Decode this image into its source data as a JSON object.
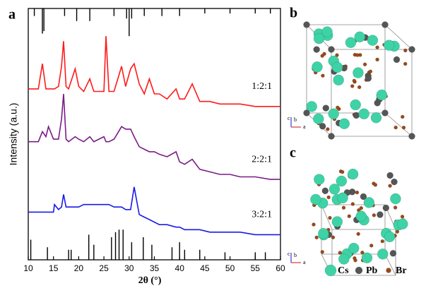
{
  "chart_data": {
    "type": "line",
    "panel_label": "a",
    "x_label": "2θ (°)",
    "y_label": "Intensity (a.u.)",
    "xlim": [
      10,
      60
    ],
    "ylim": [
      0,
      100
    ],
    "xticks": [
      10,
      15,
      20,
      25,
      30,
      35,
      40,
      45,
      50,
      55,
      60
    ],
    "x": [
      10,
      11,
      12,
      12.8,
      13.5,
      14,
      15,
      15.2,
      16,
      16.6,
      17,
      17.5,
      18,
      19.3,
      20,
      21,
      22.2,
      23,
      24,
      25,
      25.4,
      26,
      27,
      28.5,
      29.3,
      30.3,
      31,
      32,
      33,
      34,
      35,
      36,
      37.5,
      39.3,
      40,
      41,
      42.5,
      44,
      46,
      48,
      50,
      52,
      55,
      58,
      60
    ],
    "series": [
      {
        "name": "1:2:1",
        "color": "#ff1a1a",
        "values": [
          68,
          68,
          68,
          78,
          68,
          68,
          68,
          68,
          69,
          77,
          87,
          69,
          68,
          76,
          69,
          67,
          72,
          67,
          67,
          67,
          89,
          67,
          67,
          77,
          69,
          76,
          78,
          70,
          66,
          72,
          66,
          66,
          64,
          68,
          64,
          64,
          70,
          63,
          63,
          62,
          62,
          62,
          61,
          61,
          61
        ]
      },
      {
        "name": "2:2:1",
        "color": "#7a1c86",
        "values": [
          47,
          47,
          47,
          51,
          49,
          53,
          48,
          48,
          48,
          56,
          66,
          48,
          47,
          49,
          48,
          47,
          49,
          47,
          48,
          49,
          47,
          47,
          48,
          53,
          52,
          52,
          49,
          45,
          44,
          43,
          43,
          42,
          41,
          43,
          39,
          38,
          40,
          36,
          35,
          34,
          34,
          33,
          33,
          32,
          32
        ]
      },
      {
        "name": "3:2:1",
        "color": "#1a1ae6",
        "values": [
          19,
          19,
          19,
          19,
          19,
          19,
          19,
          22,
          20,
          21,
          26,
          21,
          21,
          21,
          21,
          22,
          22,
          22,
          22,
          22,
          22,
          22,
          21,
          21,
          20,
          20,
          29,
          18,
          17,
          16,
          15,
          14,
          14,
          13,
          13,
          12,
          12,
          12,
          11,
          11,
          11,
          11,
          10,
          10,
          10
        ]
      }
    ],
    "references": [
      {
        "position": "top",
        "x": [
          11.2,
          12.8,
          13.1,
          17.2,
          19.6,
          22.2,
          27,
          29.5,
          30,
          30.5,
          33,
          36.5,
          40,
          45,
          50,
          55,
          58
        ],
        "values": [
          3,
          10,
          9,
          3,
          5,
          5,
          3,
          4,
          11,
          4,
          3,
          3,
          3,
          2,
          2,
          2,
          2
        ]
      },
      {
        "position": "bottom",
        "x": [
          10.5,
          13.8,
          18,
          18.5,
          22,
          23,
          26.5,
          27.3,
          28,
          28.8,
          30.5,
          32.8,
          34.5,
          38.5,
          40,
          41,
          44,
          49,
          55,
          57
        ],
        "values": [
          8,
          5,
          4,
          4,
          10,
          6,
          9,
          11,
          12,
          12,
          7,
          9,
          6,
          5,
          7,
          4,
          4,
          3,
          3,
          3
        ]
      }
    ]
  },
  "structures": {
    "b": {
      "label": "b",
      "axes": [
        "c",
        "b",
        "a"
      ]
    },
    "c": {
      "label": "c",
      "axes": [
        "c",
        "b",
        "a"
      ],
      "legend": [
        "Cs",
        "Pb",
        "Br"
      ]
    }
  }
}
